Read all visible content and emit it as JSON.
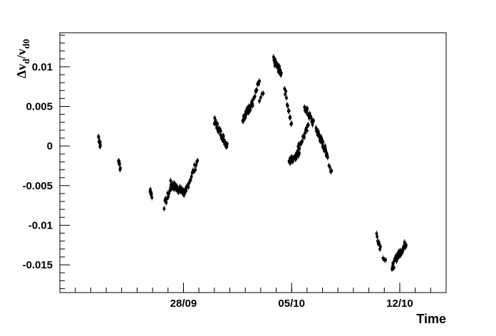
{
  "chart_data": {
    "type": "scatter",
    "title": "",
    "xlabel": "Time",
    "ylabel": {
      "text": "Δv",
      "sub1": "d",
      "mid": "/v",
      "sub2": "d0"
    },
    "x_day_range": [
      "2007-09-20",
      "2007-10-15"
    ],
    "ylim": [
      -0.0185,
      0.0143
    ],
    "grid": false,
    "x_ticks": [
      {
        "label": "28/09",
        "date": "2007-09-28"
      },
      {
        "label": "05/10",
        "date": "2007-10-05"
      },
      {
        "label": "12/10",
        "date": "2007-10-12"
      }
    ],
    "y_ticks": [
      {
        "label": "0.01",
        "value": 0.01
      },
      {
        "label": "0.005",
        "value": 0.005
      },
      {
        "label": "0",
        "value": 0
      },
      {
        "label": "-0.005",
        "value": -0.005
      },
      {
        "label": "-0.01",
        "value": -0.01
      },
      {
        "label": "-0.015",
        "value": -0.015
      }
    ],
    "series": [
      {
        "marker": "square-with-errorbar",
        "color": "#000000",
        "clusters": [
          {
            "x_from": "2007-09-22T12:00",
            "x_to": "2007-09-22T15:00",
            "y_from": 0.0012,
            "y_to": 0.0,
            "n": 9
          },
          {
            "x_from": "2007-09-23T19:00",
            "x_to": "2007-09-23T22:00",
            "y_from": -0.0018,
            "y_to": -0.0028,
            "n": 6
          },
          {
            "x_from": "2007-09-25T20:00",
            "x_to": "2007-09-25T23:00",
            "y_from": -0.0055,
            "y_to": -0.0062,
            "n": 6
          },
          {
            "x_from": "2007-09-26T18:00",
            "x_to": "2007-09-27T06:00",
            "y_from": -0.0075,
            "y_to": -0.005,
            "n": 12
          },
          {
            "x_from": "2007-09-27T04:00",
            "x_to": "2007-09-28T04:00",
            "y_from": -0.0048,
            "y_to": -0.006,
            "n": 45
          },
          {
            "x_from": "2007-09-28T04:00",
            "x_to": "2007-09-28T22:00",
            "y_from": -0.0055,
            "y_to": -0.0018,
            "n": 16
          },
          {
            "x_from": "2007-09-30T00:00",
            "x_to": "2007-09-30T20:00",
            "y_from": 0.0032,
            "y_to": 0.0,
            "n": 35
          },
          {
            "x_from": "2007-10-01T20:00",
            "x_to": "2007-10-02T12:00",
            "y_from": 0.0035,
            "y_to": 0.0055,
            "n": 35
          },
          {
            "x_from": "2007-10-02T14:00",
            "x_to": "2007-10-02T22:00",
            "y_from": 0.006,
            "y_to": 0.0082,
            "n": 9
          },
          {
            "x_from": "2007-10-02T22:00",
            "x_to": "2007-10-03T04:00",
            "y_from": 0.0055,
            "y_to": 0.0066,
            "n": 4
          },
          {
            "x_from": "2007-10-03T20:00",
            "x_to": "2007-10-04T08:00",
            "y_from": 0.0108,
            "y_to": 0.0092,
            "n": 25
          },
          {
            "x_from": "2007-10-04T13:00",
            "x_to": "2007-10-05T00:00",
            "y_from": 0.0074,
            "y_to": 0.0025,
            "n": 12
          },
          {
            "x_from": "2007-10-04T20:00",
            "x_to": "2007-10-05T12:00",
            "y_from": -0.002,
            "y_to": -0.0008,
            "n": 25
          },
          {
            "x_from": "2007-10-05T08:00",
            "x_to": "2007-10-06T02:00",
            "y_from": -0.0006,
            "y_to": 0.0024,
            "n": 18
          },
          {
            "x_from": "2007-10-05T20:00",
            "x_to": "2007-10-06T10:00",
            "y_from": 0.005,
            "y_to": 0.0028,
            "n": 20
          },
          {
            "x_from": "2007-10-06T14:00",
            "x_to": "2007-10-07T08:00",
            "y_from": 0.0022,
            "y_to": -0.0012,
            "n": 40
          },
          {
            "x_from": "2007-10-07T10:00",
            "x_to": "2007-10-07T14:00",
            "y_from": -0.0025,
            "y_to": -0.0032,
            "n": 4
          },
          {
            "x_from": "2007-10-10T12:00",
            "x_to": "2007-10-10T18:00",
            "y_from": -0.0112,
            "y_to": -0.0128,
            "n": 8
          },
          {
            "x_from": "2007-10-10T22:00",
            "x_to": "2007-10-11T02:00",
            "y_from": -0.0138,
            "y_to": -0.0142,
            "n": 3
          },
          {
            "x_from": "2007-10-11T12:00",
            "x_to": "2007-10-11T22:00",
            "y_from": -0.0155,
            "y_to": -0.0135,
            "n": 18
          },
          {
            "x_from": "2007-10-11T22:00",
            "x_to": "2007-10-12T10:00",
            "y_from": -0.0138,
            "y_to": -0.0122,
            "n": 20
          }
        ]
      }
    ]
  }
}
